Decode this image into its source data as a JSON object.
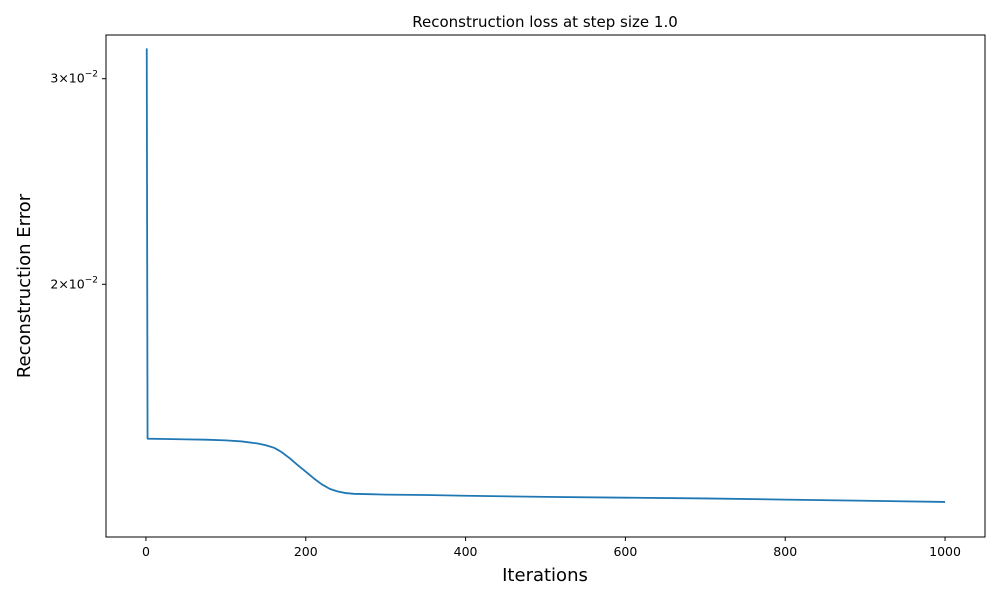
{
  "chart_data": {
    "type": "line",
    "title": "Reconstruction loss at step size 1.0",
    "xlabel": "Iterations",
    "ylabel": "Reconstruction Error",
    "xlim": [
      -50,
      1050
    ],
    "ylim": [
      0.01215,
      0.0327
    ],
    "yscale": "log",
    "grid": false,
    "x_ticks": [
      0,
      200,
      400,
      600,
      800,
      1000
    ],
    "x_tick_labels": [
      "0",
      "200",
      "400",
      "600",
      "800",
      "1000"
    ],
    "y_ticks": [
      0.02,
      0.03
    ],
    "y_tick_labels": [
      {
        "base": "2×10",
        "exp": "−2"
      },
      {
        "base": "3×10",
        "exp": "−2"
      }
    ],
    "line_color": "#1f77b4",
    "series": [
      {
        "x": [
          0,
          1,
          2,
          25,
          50,
          75,
          100,
          120,
          140,
          150,
          160,
          165,
          170,
          180,
          190,
          200,
          210,
          220,
          230,
          240,
          250,
          260,
          280,
          300,
          350,
          400,
          500,
          600,
          700,
          800,
          900,
          1000
        ],
        "y": [
          0.0318,
          0.0318,
          0.01475,
          0.01474,
          0.01473,
          0.01472,
          0.0147,
          0.01467,
          0.01461,
          0.01456,
          0.01449,
          0.01443,
          0.01436,
          0.01419,
          0.014,
          0.01382,
          0.01364,
          0.01348,
          0.01336,
          0.01329,
          0.01325,
          0.01323,
          0.01322,
          0.01321,
          0.0132,
          0.01318,
          0.01315,
          0.01313,
          0.01311,
          0.01308,
          0.01305,
          0.01302
        ]
      }
    ]
  }
}
